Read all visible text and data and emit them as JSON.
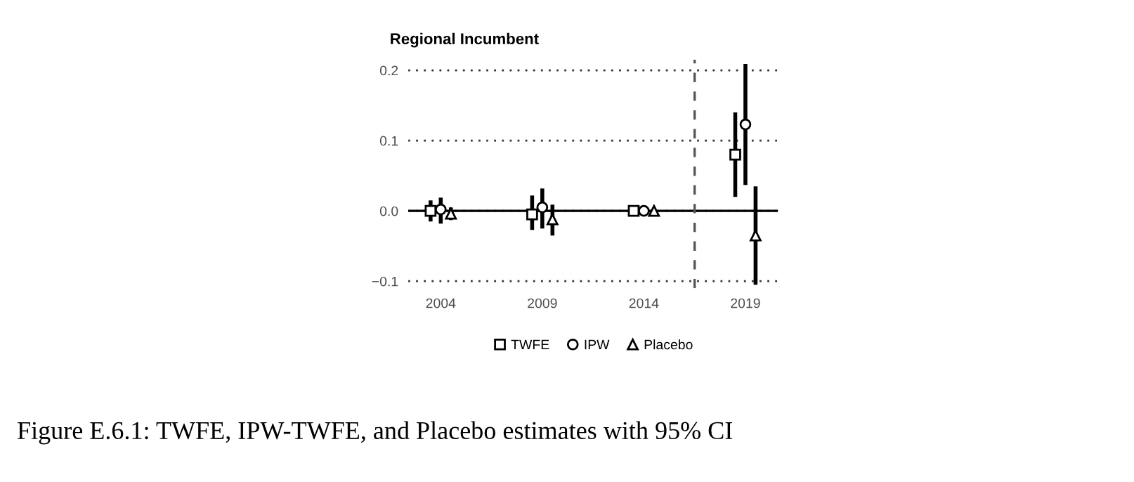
{
  "chart_data": {
    "type": "scatter",
    "title": "Regional Incumbent",
    "series": [
      {
        "name": "TWFE",
        "color": "#000000",
        "marker": "square",
        "x": [
          2003.5,
          2008.5,
          2013.5,
          2018.5
        ],
        "values": [
          0,
          -0.005,
          0,
          0.08
        ],
        "errors": [
          [
            -0.015,
            0.015
          ],
          [
            -0.027,
            0.022
          ],
          null,
          [
            0.02,
            0.14
          ]
        ]
      },
      {
        "name": "IPW",
        "color": "#000000",
        "marker": "circle",
        "x": [
          2004,
          2009,
          2014,
          2019
        ],
        "values": [
          0.002,
          0.005,
          0,
          0.123
        ],
        "errors": [
          [
            -0.018,
            0.019
          ],
          [
            -0.025,
            0.032
          ],
          null,
          [
            0.037,
            0.209
          ]
        ]
      },
      {
        "name": "Placebo",
        "color": "#000000",
        "marker": "triangle",
        "x": [
          2004.5,
          2009.5,
          2014.5,
          2019.5
        ],
        "values": [
          -0.004,
          -0.012,
          0,
          -0.035
        ],
        "errors": [
          [
            -0.013,
            0.005
          ],
          [
            -0.035,
            0.009
          ],
          null,
          [
            -0.105,
            0.035
          ]
        ]
      }
    ],
    "xlim": [
      2002.4,
      2020.6
    ],
    "xticks": [
      2004,
      2009,
      2014,
      2019
    ],
    "ylim": [
      -0.11,
      0.215
    ],
    "yticks": [
      {
        "value": -0.1,
        "label": "−0.1"
      },
      {
        "value": 0,
        "label": "0.0"
      },
      {
        "value": 0.1,
        "label": "0.1"
      },
      {
        "value": 0.2,
        "label": "0.2"
      }
    ],
    "ref_lines": [
      {
        "axis": "y",
        "value": 0,
        "color": "#000000",
        "line_style": "solid"
      },
      {
        "axis": "x",
        "value": 2016.5,
        "color": "#555555",
        "line_style": "dashed"
      }
    ],
    "grid": "y",
    "legend": "bottom",
    "annotations": [
      "Figure E.6.1: TWFE, IPW-TWFE, and Placebo estimates with 95% CI"
    ]
  }
}
